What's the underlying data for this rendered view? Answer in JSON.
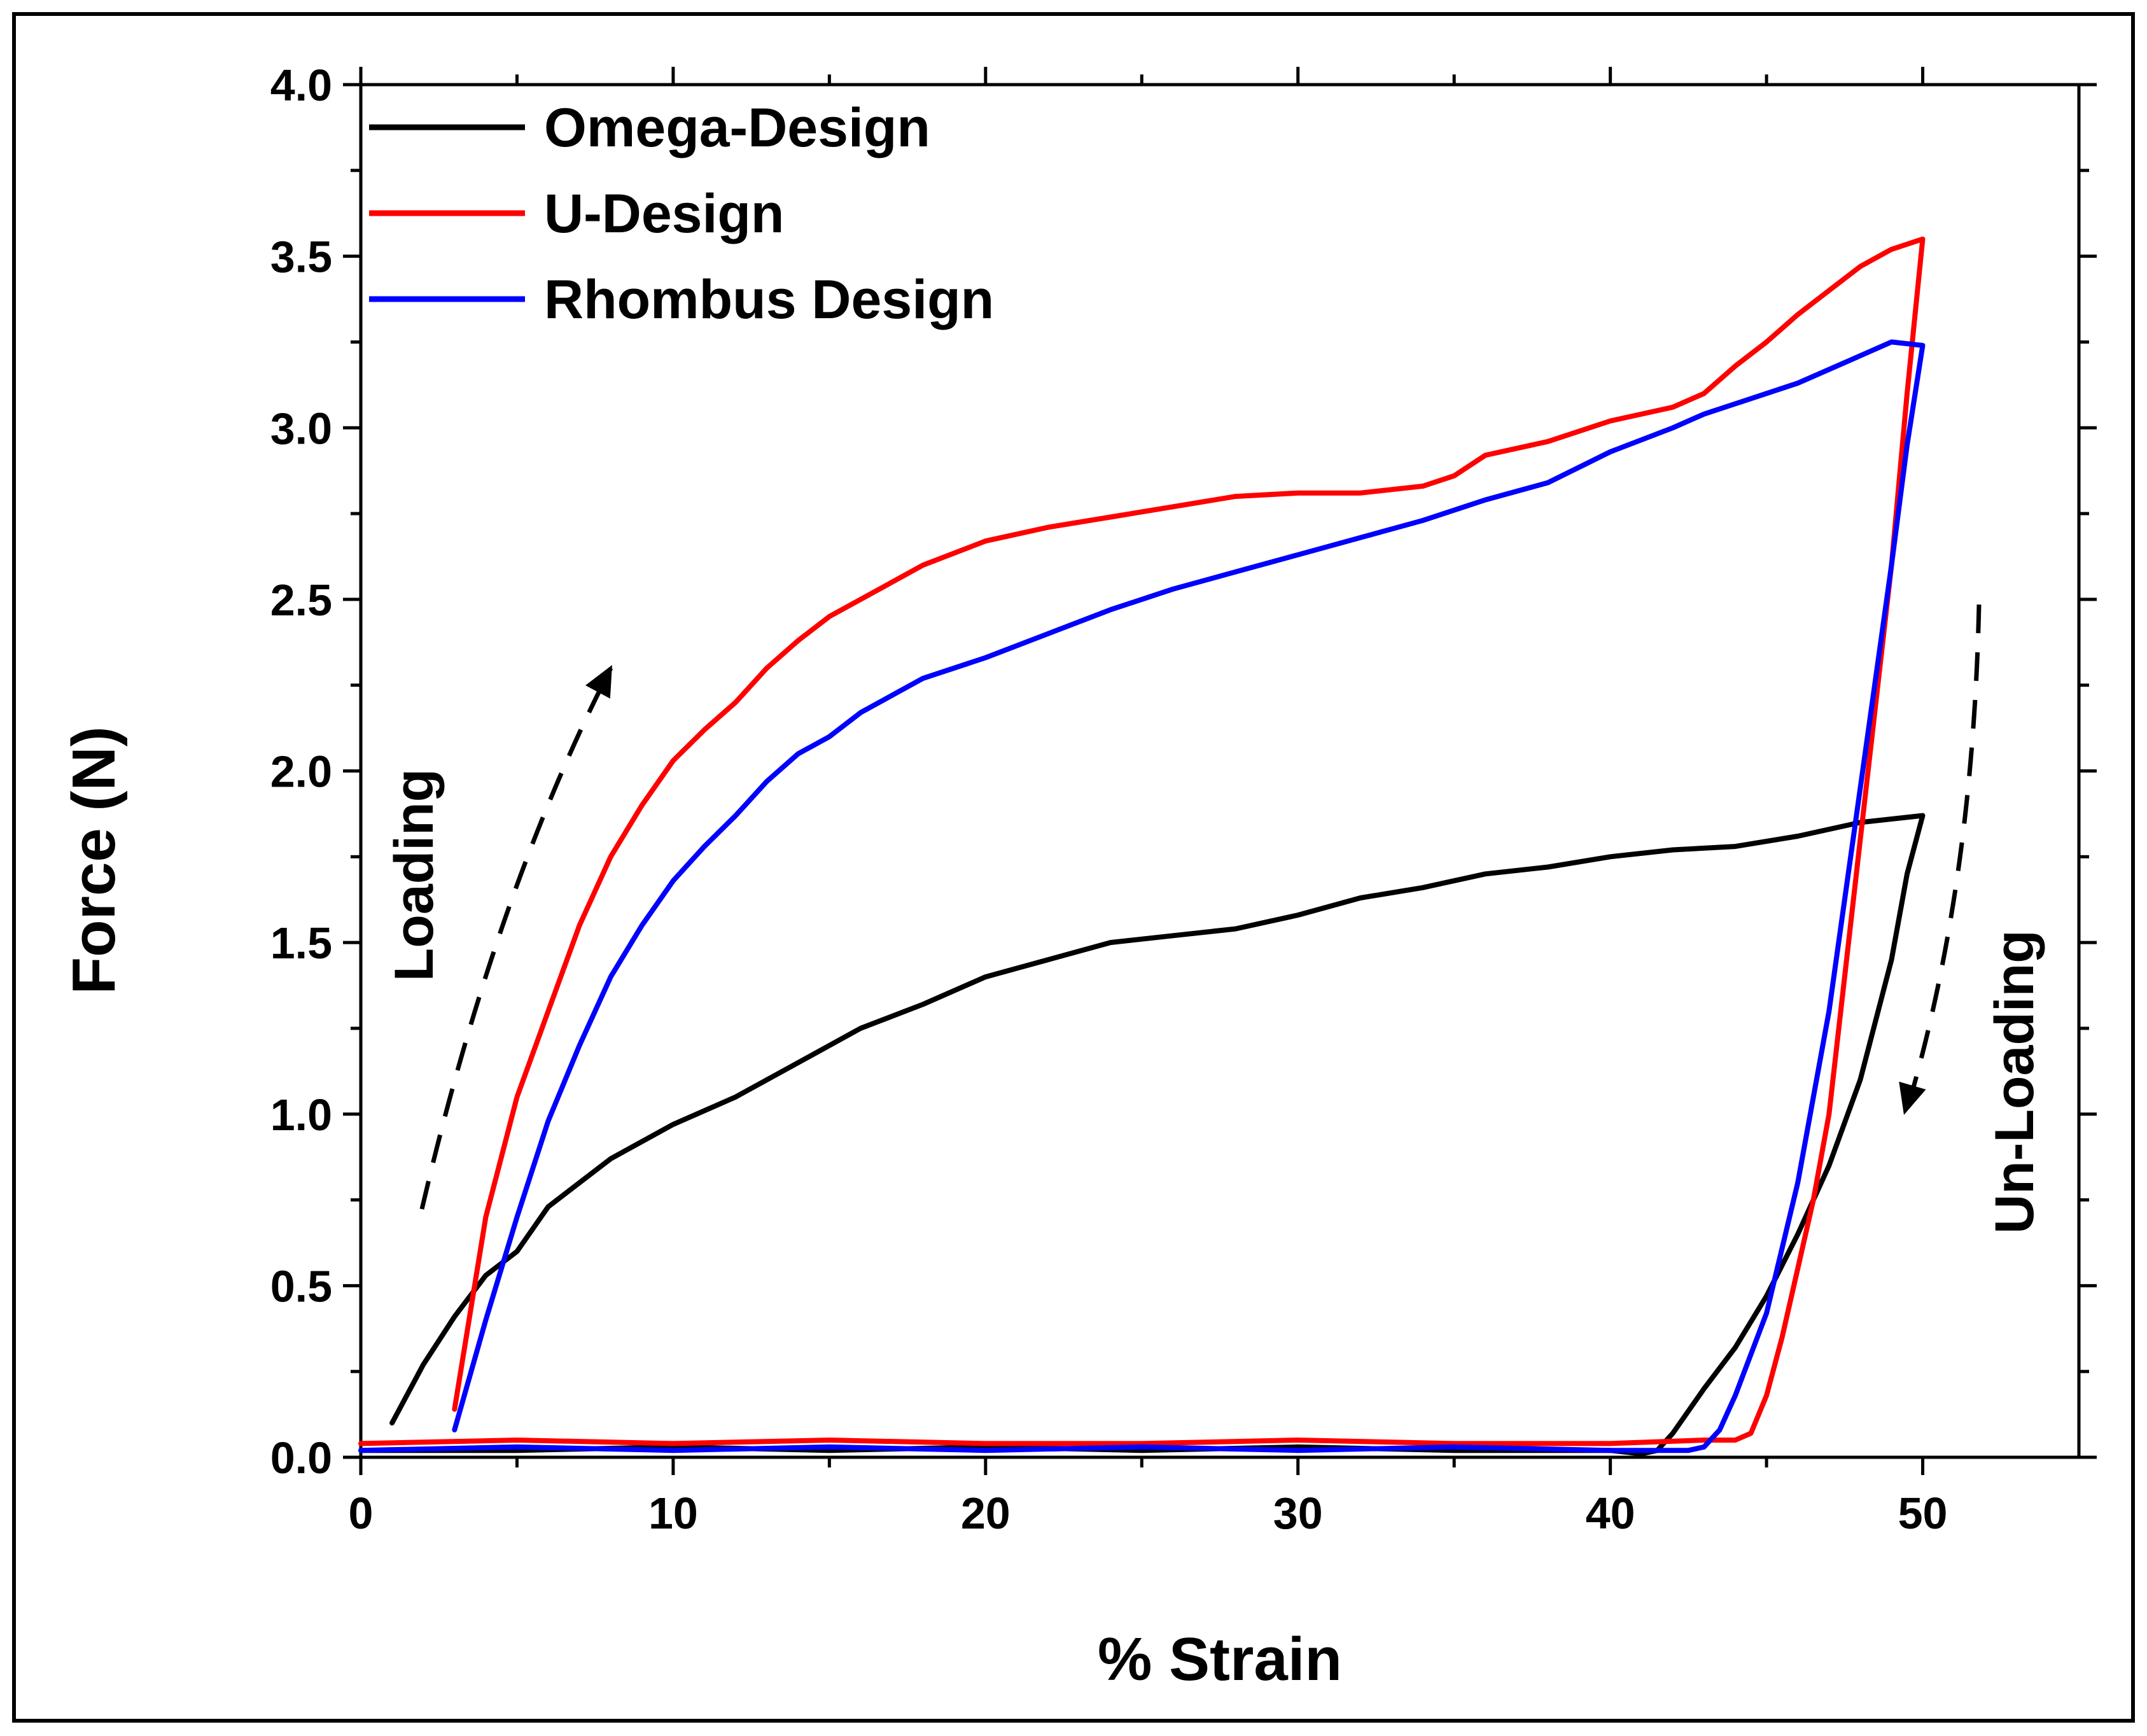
{
  "chart_data": {
    "type": "line",
    "title": "",
    "xlabel": "% Strain",
    "ylabel": "Force (N)",
    "xlim": [
      0,
      55
    ],
    "ylim": [
      0,
      4.0
    ],
    "x_ticks": [
      0,
      10,
      20,
      30,
      40,
      50
    ],
    "x_tick_labels": [
      "0",
      "10",
      "20",
      "30",
      "40",
      "50"
    ],
    "y_ticks": [
      0,
      0.5,
      1.0,
      1.5,
      2.0,
      2.5,
      3.0,
      3.5,
      4.0
    ],
    "y_tick_labels": [
      "0.0",
      "0.5",
      "1.0",
      "1.5",
      "2.0",
      "2.5",
      "3.0",
      "3.5",
      "4.0"
    ],
    "grid": false,
    "legend_position": "top-left",
    "series": [
      {
        "name": "Omega-Design",
        "color": "#000000",
        "loading": {
          "x": [
            1,
            2,
            3,
            4,
            5,
            6,
            7,
            8,
            9,
            10,
            12,
            14,
            16,
            18,
            20,
            22,
            24,
            26,
            28,
            30,
            32,
            34,
            36,
            38,
            40,
            42,
            44,
            46,
            48,
            50
          ],
          "y": [
            0.1,
            0.27,
            0.41,
            0.53,
            0.6,
            0.73,
            0.8,
            0.87,
            0.92,
            0.97,
            1.05,
            1.15,
            1.25,
            1.32,
            1.4,
            1.45,
            1.5,
            1.52,
            1.54,
            1.58,
            1.63,
            1.66,
            1.7,
            1.72,
            1.75,
            1.77,
            1.78,
            1.81,
            1.85,
            1.87
          ]
        },
        "unloading": {
          "x": [
            50,
            49.5,
            49,
            48,
            47,
            46,
            45,
            44,
            43,
            42,
            41.5,
            41,
            40,
            35,
            30,
            25,
            20,
            15,
            10,
            5,
            0
          ],
          "y": [
            1.87,
            1.7,
            1.45,
            1.1,
            0.85,
            0.65,
            0.47,
            0.32,
            0.2,
            0.07,
            0.02,
            0.01,
            0.02,
            0.02,
            0.03,
            0.02,
            0.03,
            0.02,
            0.03,
            0.02,
            0.02
          ]
        }
      },
      {
        "name": "U-Design",
        "color": "#ff0000",
        "loading": {
          "x": [
            3,
            4,
            5,
            6,
            7,
            8,
            9,
            10,
            11,
            12,
            13,
            14,
            15,
            16,
            18,
            20,
            22,
            24,
            26,
            28,
            30,
            32,
            34,
            35,
            36,
            38,
            40,
            42,
            43,
            44,
            45,
            46,
            47,
            48,
            49,
            50
          ],
          "y": [
            0.14,
            0.7,
            1.05,
            1.3,
            1.55,
            1.75,
            1.9,
            2.03,
            2.12,
            2.2,
            2.3,
            2.38,
            2.45,
            2.5,
            2.6,
            2.67,
            2.71,
            2.74,
            2.77,
            2.8,
            2.81,
            2.81,
            2.83,
            2.86,
            2.92,
            2.96,
            3.02,
            3.06,
            3.1,
            3.18,
            3.25,
            3.33,
            3.4,
            3.47,
            3.52,
            3.55
          ]
        },
        "unloading": {
          "x": [
            50,
            49.5,
            49,
            48,
            47,
            46.5,
            46,
            45.5,
            45,
            44.5,
            44,
            43,
            40,
            35,
            30,
            25,
            20,
            15,
            10,
            5,
            0
          ],
          "y": [
            3.55,
            3.1,
            2.6,
            1.8,
            1.0,
            0.75,
            0.55,
            0.35,
            0.18,
            0.07,
            0.05,
            0.05,
            0.04,
            0.04,
            0.05,
            0.04,
            0.04,
            0.05,
            0.04,
            0.05,
            0.04
          ]
        }
      },
      {
        "name": "Rhombus Design",
        "color": "#0000ff",
        "loading": {
          "x": [
            3,
            4,
            5,
            6,
            7,
            8,
            9,
            10,
            11,
            12,
            13,
            14,
            15,
            16,
            18,
            20,
            22,
            24,
            26,
            28,
            30,
            32,
            34,
            36,
            38,
            40,
            42,
            43,
            44,
            45,
            46,
            47,
            48,
            49,
            50
          ],
          "y": [
            0.08,
            0.4,
            0.7,
            0.98,
            1.2,
            1.4,
            1.55,
            1.68,
            1.78,
            1.87,
            1.97,
            2.05,
            2.1,
            2.17,
            2.27,
            2.33,
            2.4,
            2.47,
            2.53,
            2.58,
            2.63,
            2.68,
            2.73,
            2.79,
            2.84,
            2.93,
            3.0,
            3.04,
            3.07,
            3.1,
            3.13,
            3.17,
            3.21,
            3.25,
            3.24
          ]
        },
        "unloading": {
          "x": [
            50,
            49.5,
            49,
            48,
            47,
            46,
            45,
            44,
            43.5,
            43,
            42.5,
            42,
            40,
            35,
            30,
            25,
            20,
            15,
            10,
            5,
            0
          ],
          "y": [
            3.24,
            2.95,
            2.6,
            1.95,
            1.3,
            0.8,
            0.42,
            0.18,
            0.08,
            0.03,
            0.02,
            0.02,
            0.02,
            0.03,
            0.02,
            0.03,
            0.02,
            0.03,
            0.02,
            0.03,
            0.02
          ]
        }
      }
    ],
    "annotations": [
      {
        "text": "Loading",
        "position": "left",
        "direction": "up"
      },
      {
        "text": "Un-Loading",
        "position": "right",
        "direction": "down"
      }
    ]
  }
}
